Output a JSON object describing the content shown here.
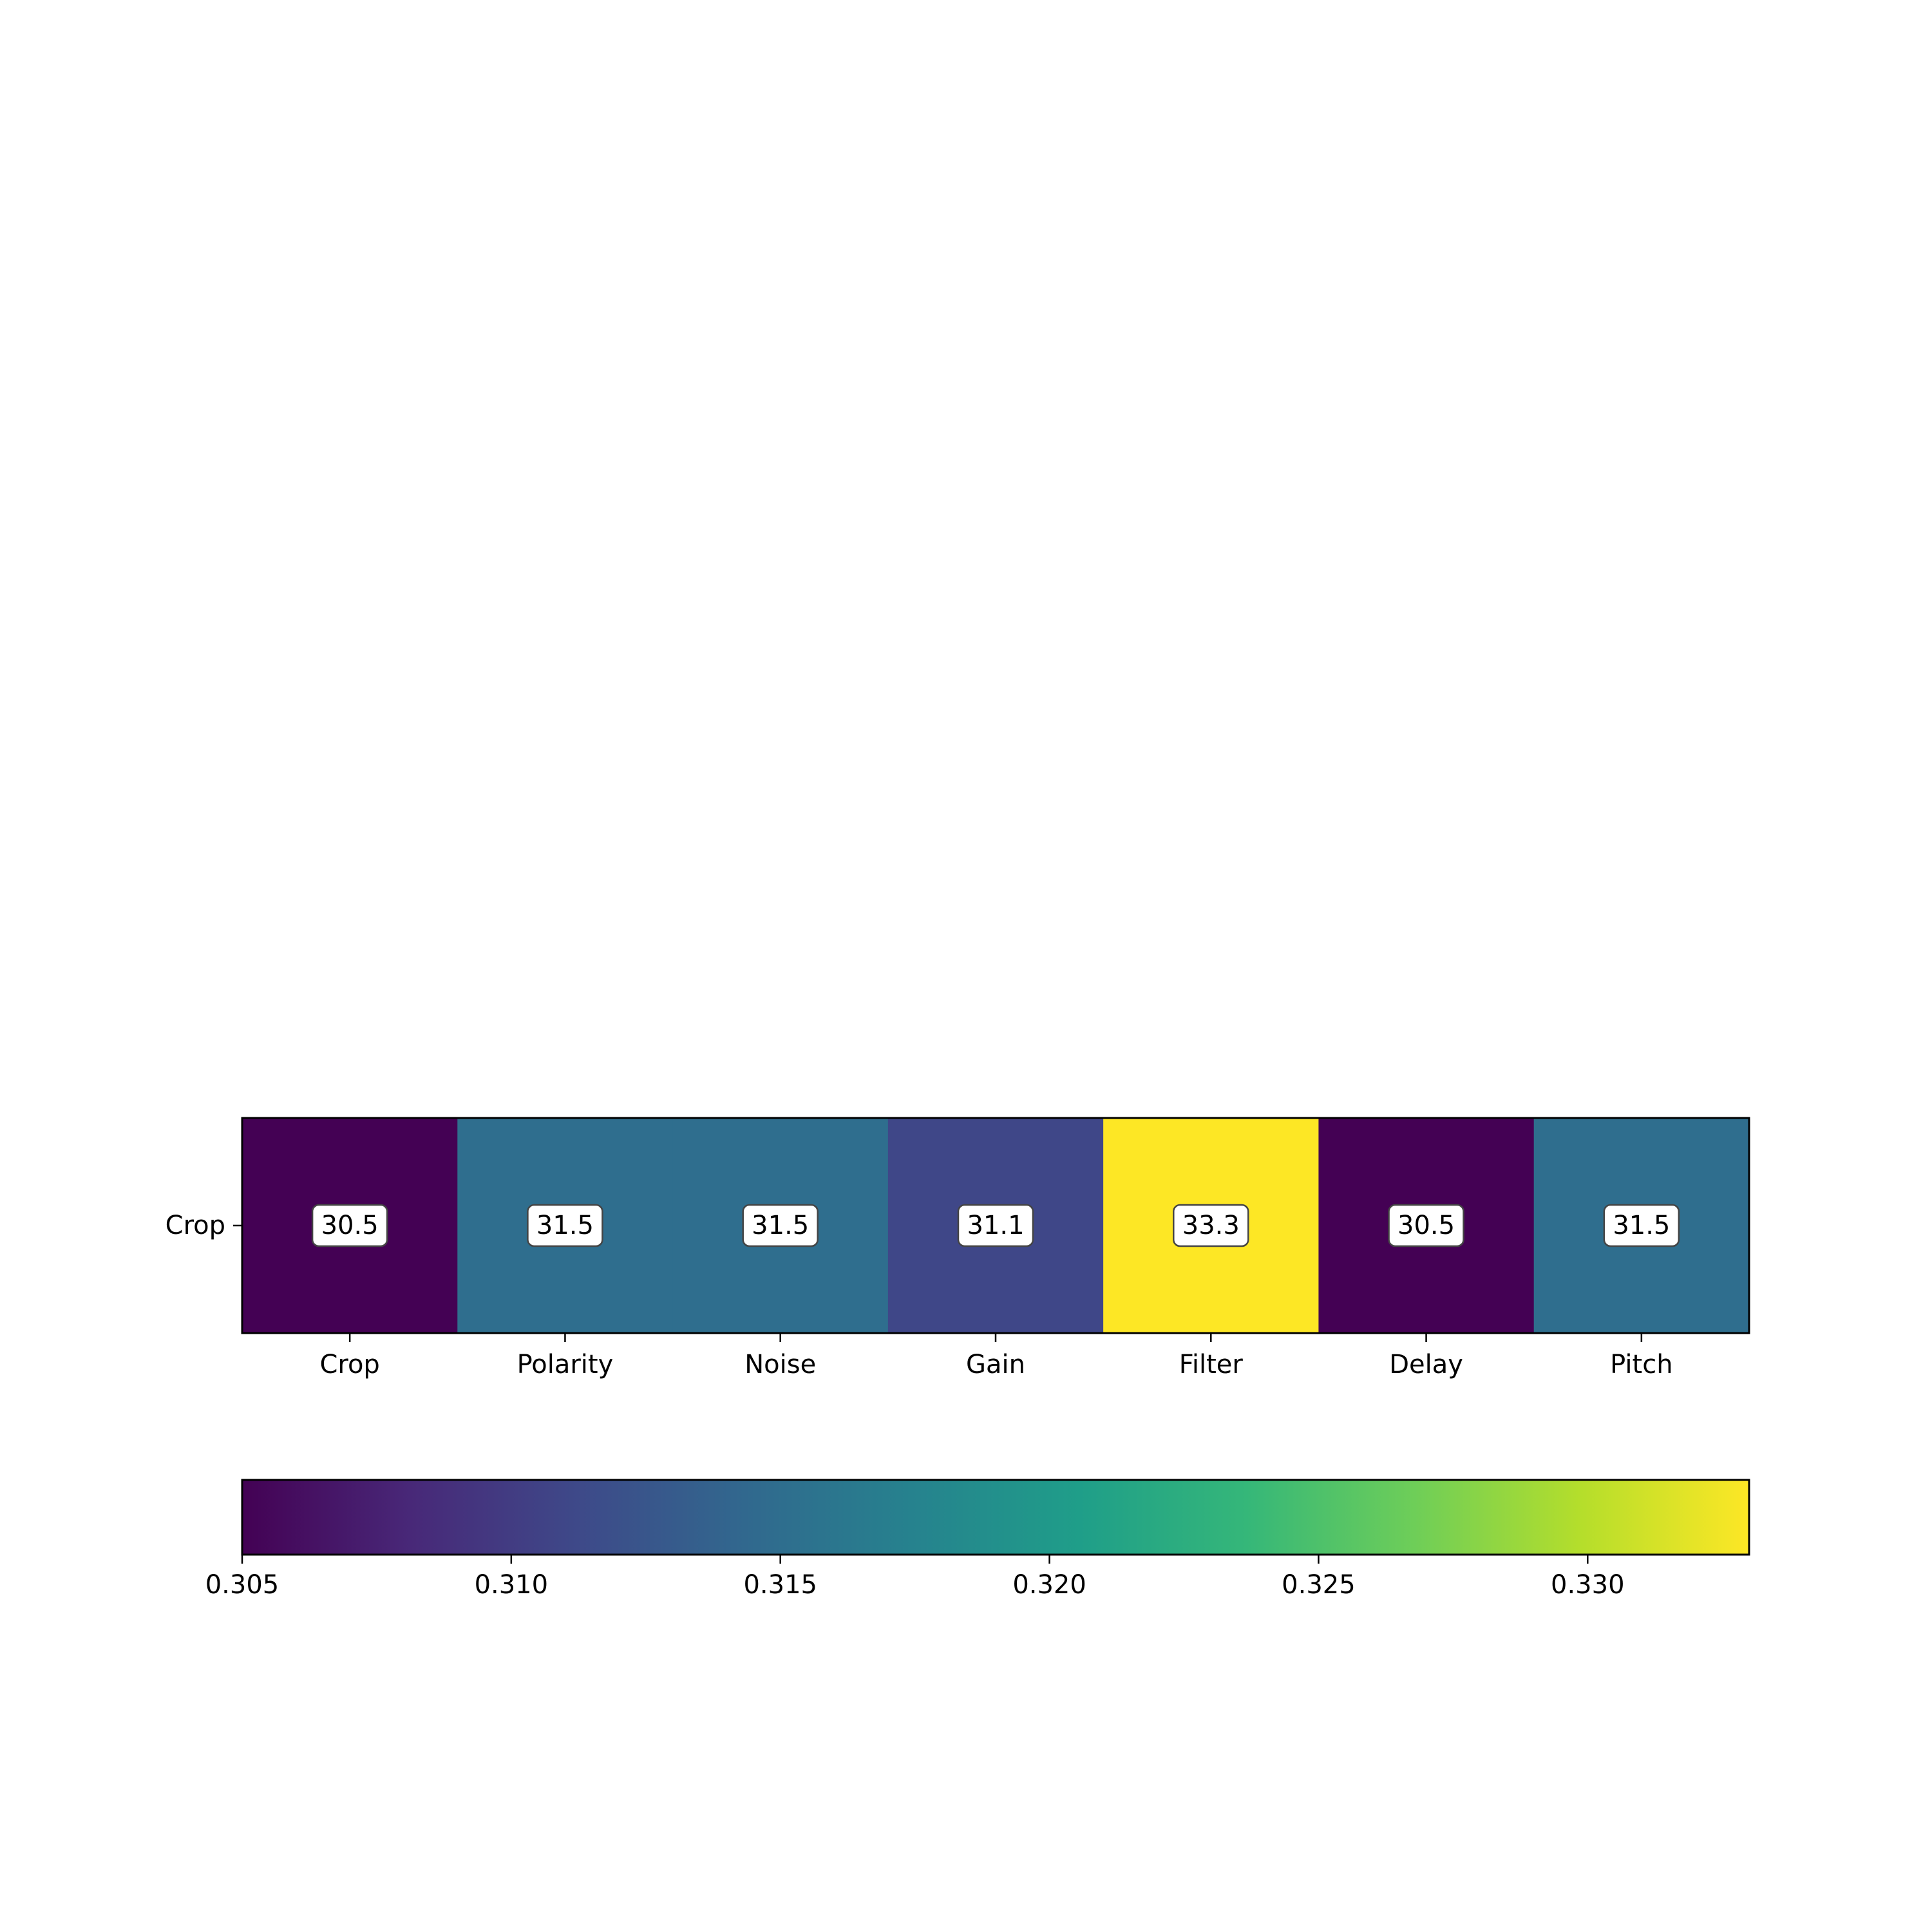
{
  "chart_data": {
    "type": "heatmap",
    "title": "",
    "xlabel": "",
    "ylabel": "",
    "x_categories": [
      "Crop",
      "Polarity",
      "Noise",
      "Gain",
      "Filter",
      "Delay",
      "Pitch"
    ],
    "y_categories": [
      "Crop"
    ],
    "values": [
      [
        0.305,
        0.315,
        0.315,
        0.311,
        0.333,
        0.305,
        0.315
      ]
    ],
    "cell_labels": [
      [
        "30.5",
        "31.5",
        "31.5",
        "31.1",
        "33.3",
        "30.5",
        "31.5"
      ]
    ],
    "colormap": "viridis",
    "colorbar": {
      "orientation": "horizontal",
      "placement": "bottom",
      "range": [
        0.305,
        0.333
      ],
      "ticks": [
        0.305,
        0.31,
        0.315,
        0.32,
        0.325,
        0.33
      ],
      "tick_labels": [
        "0.305",
        "0.310",
        "0.315",
        "0.320",
        "0.325",
        "0.330"
      ]
    }
  }
}
